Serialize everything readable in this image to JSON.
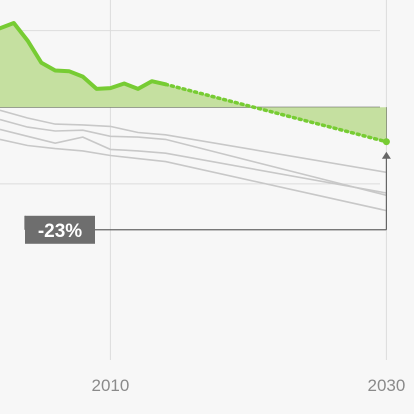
{
  "colors": {
    "background": "#f7f7f7",
    "grid": "#dcdcdc",
    "baseline": "#555555",
    "highlight_line": "#77cc33",
    "highlight_fill": "#c5e0a0",
    "comparison_lines": "#c8c8c8",
    "annotation": "#666666",
    "badge_bg": "#6e6e6e",
    "badge_text": "#ffffff",
    "tick_text": "#8a8a8a"
  },
  "chart_data": {
    "type": "line",
    "x_ticks": [
      "2010",
      "2030"
    ],
    "xlim": [
      2002,
      2032
    ],
    "ylim": [
      -33,
      14
    ],
    "gridlines_y": [
      0,
      10,
      -10
    ],
    "baseline_y": 0,
    "highlight": {
      "actual": [
        [
          2002,
          10.3
        ],
        [
          2003,
          11.0
        ],
        [
          2004,
          8.7
        ],
        [
          2005,
          5.8
        ],
        [
          2006,
          4.8
        ],
        [
          2007,
          4.7
        ],
        [
          2008,
          4.0
        ],
        [
          2009,
          2.4
        ],
        [
          2010,
          2.5
        ],
        [
          2011,
          3.1
        ],
        [
          2012,
          2.4
        ],
        [
          2013,
          3.4
        ],
        [
          2014,
          3.0
        ]
      ],
      "projected": [
        [
          2014,
          3.0
        ],
        [
          2030,
          -4.5
        ]
      ]
    },
    "comparison_series": [
      [
        [
          2002,
          -0.4
        ],
        [
          2004,
          -1.4
        ],
        [
          2006,
          -2.2
        ],
        [
          2008,
          -2.3
        ],
        [
          2010,
          -2.5
        ],
        [
          2012,
          -3.3
        ],
        [
          2014,
          -3.6
        ],
        [
          2030,
          -8.5
        ]
      ],
      [
        [
          2002,
          -1.6
        ],
        [
          2004,
          -2.6
        ],
        [
          2006,
          -3.1
        ],
        [
          2008,
          -3.0
        ],
        [
          2010,
          -3.8
        ],
        [
          2012,
          -3.9
        ],
        [
          2014,
          -4.2
        ],
        [
          2030,
          -11.5
        ]
      ],
      [
        [
          2002,
          -2.9
        ],
        [
          2004,
          -3.8
        ],
        [
          2006,
          -4.7
        ],
        [
          2008,
          -3.9
        ],
        [
          2010,
          -5.5
        ],
        [
          2012,
          -5.7
        ],
        [
          2014,
          -6.0
        ],
        [
          2030,
          -11.2
        ]
      ],
      [
        [
          2002,
          -4.2
        ],
        [
          2004,
          -5.0
        ],
        [
          2006,
          -5.4
        ],
        [
          2008,
          -5.7
        ],
        [
          2010,
          -6.3
        ],
        [
          2012,
          -6.7
        ],
        [
          2014,
          -7.1
        ],
        [
          2030,
          -13.5
        ]
      ]
    ],
    "annotation": {
      "label": "-23%",
      "target_x": 2030,
      "target_y": -4.5,
      "from_y": -16
    }
  }
}
